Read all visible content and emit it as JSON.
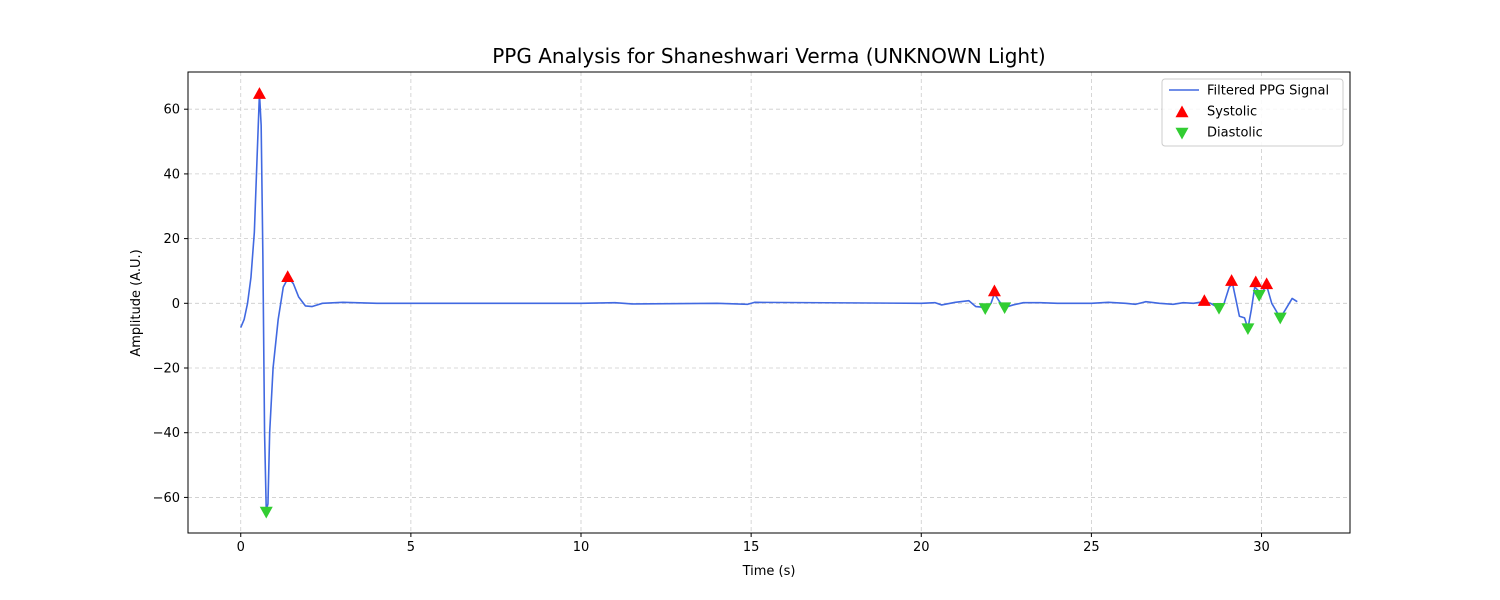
{
  "chart_data": {
    "type": "line",
    "title": "PPG Analysis for Shaneshwari Verma (UNKNOWN Light)",
    "xlabel": "Time (s)",
    "ylabel": "Amplitude (A.U.)",
    "xlim": [
      -1.55,
      32.6
    ],
    "ylim": [
      -71,
      71.5
    ],
    "xticks": [
      0,
      5,
      10,
      15,
      20,
      25,
      30
    ],
    "yticks": [
      -60,
      -40,
      -20,
      0,
      20,
      40,
      60
    ],
    "xtick_labels": [
      "0",
      "5",
      "10",
      "15",
      "20",
      "25",
      "30"
    ],
    "ytick_labels": [
      "−60",
      "−40",
      "−20",
      "0",
      "20",
      "40",
      "60"
    ],
    "grid": true,
    "legend_position": "top-right",
    "series": [
      {
        "name": "Filtered PPG Signal",
        "kind": "line",
        "color": "#4169e1",
        "points": [
          [
            0.0,
            -7.5
          ],
          [
            0.1,
            -5
          ],
          [
            0.2,
            0
          ],
          [
            0.3,
            8
          ],
          [
            0.4,
            22
          ],
          [
            0.48,
            45
          ],
          [
            0.55,
            65
          ],
          [
            0.6,
            55
          ],
          [
            0.65,
            15
          ],
          [
            0.7,
            -40
          ],
          [
            0.75,
            -64
          ],
          [
            0.8,
            -62
          ],
          [
            0.85,
            -40
          ],
          [
            0.95,
            -20
          ],
          [
            1.1,
            -5
          ],
          [
            1.25,
            5
          ],
          [
            1.4,
            8
          ],
          [
            1.55,
            6
          ],
          [
            1.7,
            2
          ],
          [
            1.9,
            -0.8
          ],
          [
            2.1,
            -1
          ],
          [
            2.4,
            0
          ],
          [
            3.0,
            0.3
          ],
          [
            4.0,
            0
          ],
          [
            5.0,
            0
          ],
          [
            10.0,
            0
          ],
          [
            11.0,
            0.2
          ],
          [
            11.5,
            -0.2
          ],
          [
            14.0,
            0
          ],
          [
            14.9,
            -0.3
          ],
          [
            15.1,
            0.3
          ],
          [
            20.0,
            0
          ],
          [
            20.4,
            0.2
          ],
          [
            20.6,
            -0.5
          ],
          [
            21.0,
            0.3
          ],
          [
            21.4,
            0.8
          ],
          [
            21.6,
            -1
          ],
          [
            21.8,
            -1.2
          ],
          [
            21.9,
            -1.5
          ],
          [
            22.05,
            0
          ],
          [
            22.15,
            3
          ],
          [
            22.3,
            0.5
          ],
          [
            22.45,
            -1.3
          ],
          [
            22.7,
            -0.5
          ],
          [
            23.0,
            0.2
          ],
          [
            23.5,
            0.2
          ],
          [
            24.0,
            0
          ],
          [
            25.0,
            0
          ],
          [
            25.5,
            0.3
          ],
          [
            26.0,
            0
          ],
          [
            26.3,
            -0.3
          ],
          [
            26.6,
            0.5
          ],
          [
            27.0,
            0
          ],
          [
            27.4,
            -0.3
          ],
          [
            27.7,
            0.2
          ],
          [
            28.0,
            0
          ],
          [
            28.3,
            0.5
          ],
          [
            28.5,
            0
          ],
          [
            28.75,
            -1.5
          ],
          [
            28.9,
            0
          ],
          [
            29.05,
            5
          ],
          [
            29.15,
            6
          ],
          [
            29.25,
            1
          ],
          [
            29.35,
            -4
          ],
          [
            29.5,
            -4.5
          ],
          [
            29.6,
            -7.8
          ],
          [
            29.7,
            -2
          ],
          [
            29.8,
            5
          ],
          [
            29.9,
            4
          ],
          [
            29.95,
            2.5
          ],
          [
            30.05,
            4
          ],
          [
            30.15,
            5.5
          ],
          [
            30.3,
            0
          ],
          [
            30.55,
            -4.5
          ],
          [
            30.7,
            -2
          ],
          [
            30.9,
            1.5
          ],
          [
            31.05,
            0.5
          ]
        ]
      },
      {
        "name": "Systolic",
        "kind": "marker",
        "marker": "triangle-up",
        "color": "#ff0000",
        "x": [
          0.55,
          1.38,
          22.15,
          28.32,
          29.12,
          29.83,
          30.15
        ],
        "y": [
          64.8,
          8.2,
          3.8,
          0.8,
          7.0,
          6.6,
          6.0
        ]
      },
      {
        "name": "Diastolic",
        "kind": "marker",
        "marker": "triangle-down",
        "color": "#32cd32",
        "x": [
          0.75,
          21.88,
          22.45,
          28.75,
          29.6,
          29.93,
          30.55
        ],
        "y": [
          -64.5,
          -1.6,
          -1.3,
          -1.5,
          -7.8,
          2.5,
          -4.5
        ]
      }
    ]
  }
}
